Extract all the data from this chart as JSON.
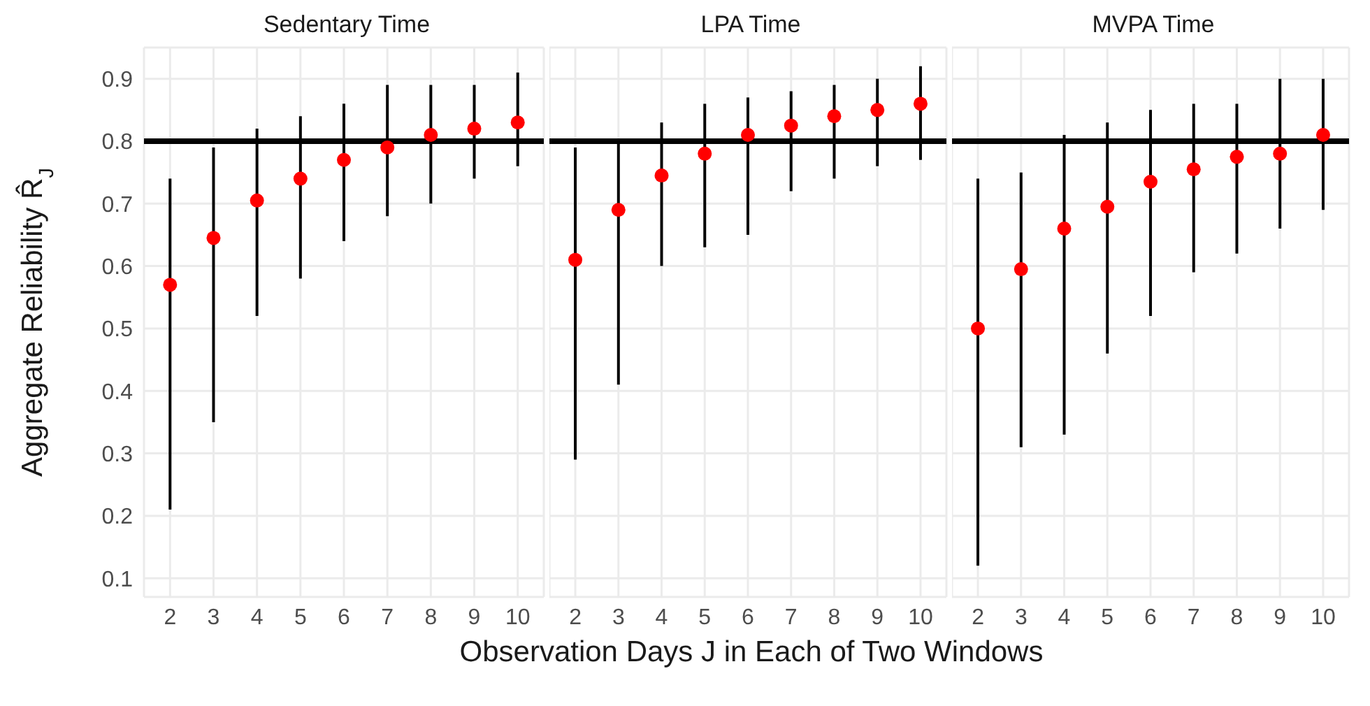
{
  "chart_data": [
    {
      "type": "scatter",
      "title": "Sedentary Time",
      "ylabel": "Aggregate Reliability R̂$_{J}$",
      "categories": [
        "2",
        "3",
        "4",
        "5",
        "6",
        "7",
        "8",
        "9",
        "10"
      ],
      "color": "#ff0000",
      "marker": "circle",
      "values": [
        0.57,
        0.645,
        0.705,
        0.74,
        0.77,
        0.79,
        0.81,
        0.82,
        0.83
      ],
      "errors": [
        [
          0.21,
          0.74
        ],
        [
          0.35,
          0.79
        ],
        [
          0.52,
          0.82
        ],
        [
          0.58,
          0.84
        ],
        [
          0.64,
          0.86
        ],
        [
          0.68,
          0.89
        ],
        [
          0.7,
          0.89
        ],
        [
          0.74,
          0.89
        ],
        [
          0.76,
          0.91
        ]
      ],
      "ylim": [
        0.07,
        0.95
      ],
      "yticks": [
        0.1,
        0.2,
        0.3,
        0.4,
        0.5,
        0.6,
        0.7,
        0.8,
        0.9
      ],
      "grid": true,
      "ref_lines": [
        {
          "axis": "y",
          "value": 0.8
        }
      ]
    },
    {
      "type": "scatter",
      "title": "LPA Time",
      "xlabel": "Observation Days J in Each of Two Windows",
      "categories": [
        "2",
        "3",
        "4",
        "5",
        "6",
        "7",
        "8",
        "9",
        "10"
      ],
      "color": "#ff0000",
      "marker": "circle",
      "values": [
        0.61,
        0.69,
        0.745,
        0.78,
        0.81,
        0.825,
        0.84,
        0.85,
        0.86
      ],
      "errors": [
        [
          0.29,
          0.79
        ],
        [
          0.41,
          0.8
        ],
        [
          0.6,
          0.83
        ],
        [
          0.63,
          0.86
        ],
        [
          0.65,
          0.87
        ],
        [
          0.72,
          0.88
        ],
        [
          0.74,
          0.89
        ],
        [
          0.76,
          0.9
        ],
        [
          0.77,
          0.92
        ]
      ],
      "ylim": [
        0.07,
        0.95
      ],
      "yticks": [
        0.1,
        0.2,
        0.3,
        0.4,
        0.5,
        0.6,
        0.7,
        0.8,
        0.9
      ],
      "grid": true,
      "tick_labels": "x",
      "ref_lines": [
        {
          "axis": "y",
          "value": 0.8
        }
      ]
    },
    {
      "type": "scatter",
      "title": "MVPA Time",
      "categories": [
        "2",
        "3",
        "4",
        "5",
        "6",
        "7",
        "8",
        "9",
        "10"
      ],
      "color": "#ff0000",
      "marker": "circle",
      "values": [
        0.5,
        0.595,
        0.66,
        0.695,
        0.735,
        0.755,
        0.775,
        0.78,
        0.81
      ],
      "errors": [
        [
          0.12,
          0.74
        ],
        [
          0.31,
          0.75
        ],
        [
          0.33,
          0.81
        ],
        [
          0.46,
          0.83
        ],
        [
          0.52,
          0.85
        ],
        [
          0.59,
          0.86
        ],
        [
          0.62,
          0.86
        ],
        [
          0.66,
          0.9
        ],
        [
          0.69,
          0.9
        ]
      ],
      "ylim": [
        0.07,
        0.95
      ],
      "yticks": [
        0.1,
        0.2,
        0.3,
        0.4,
        0.5,
        0.6,
        0.7,
        0.8,
        0.9
      ],
      "grid": true,
      "tick_labels": "x",
      "ref_lines": [
        {
          "axis": "y",
          "value": 0.8
        }
      ]
    }
  ]
}
